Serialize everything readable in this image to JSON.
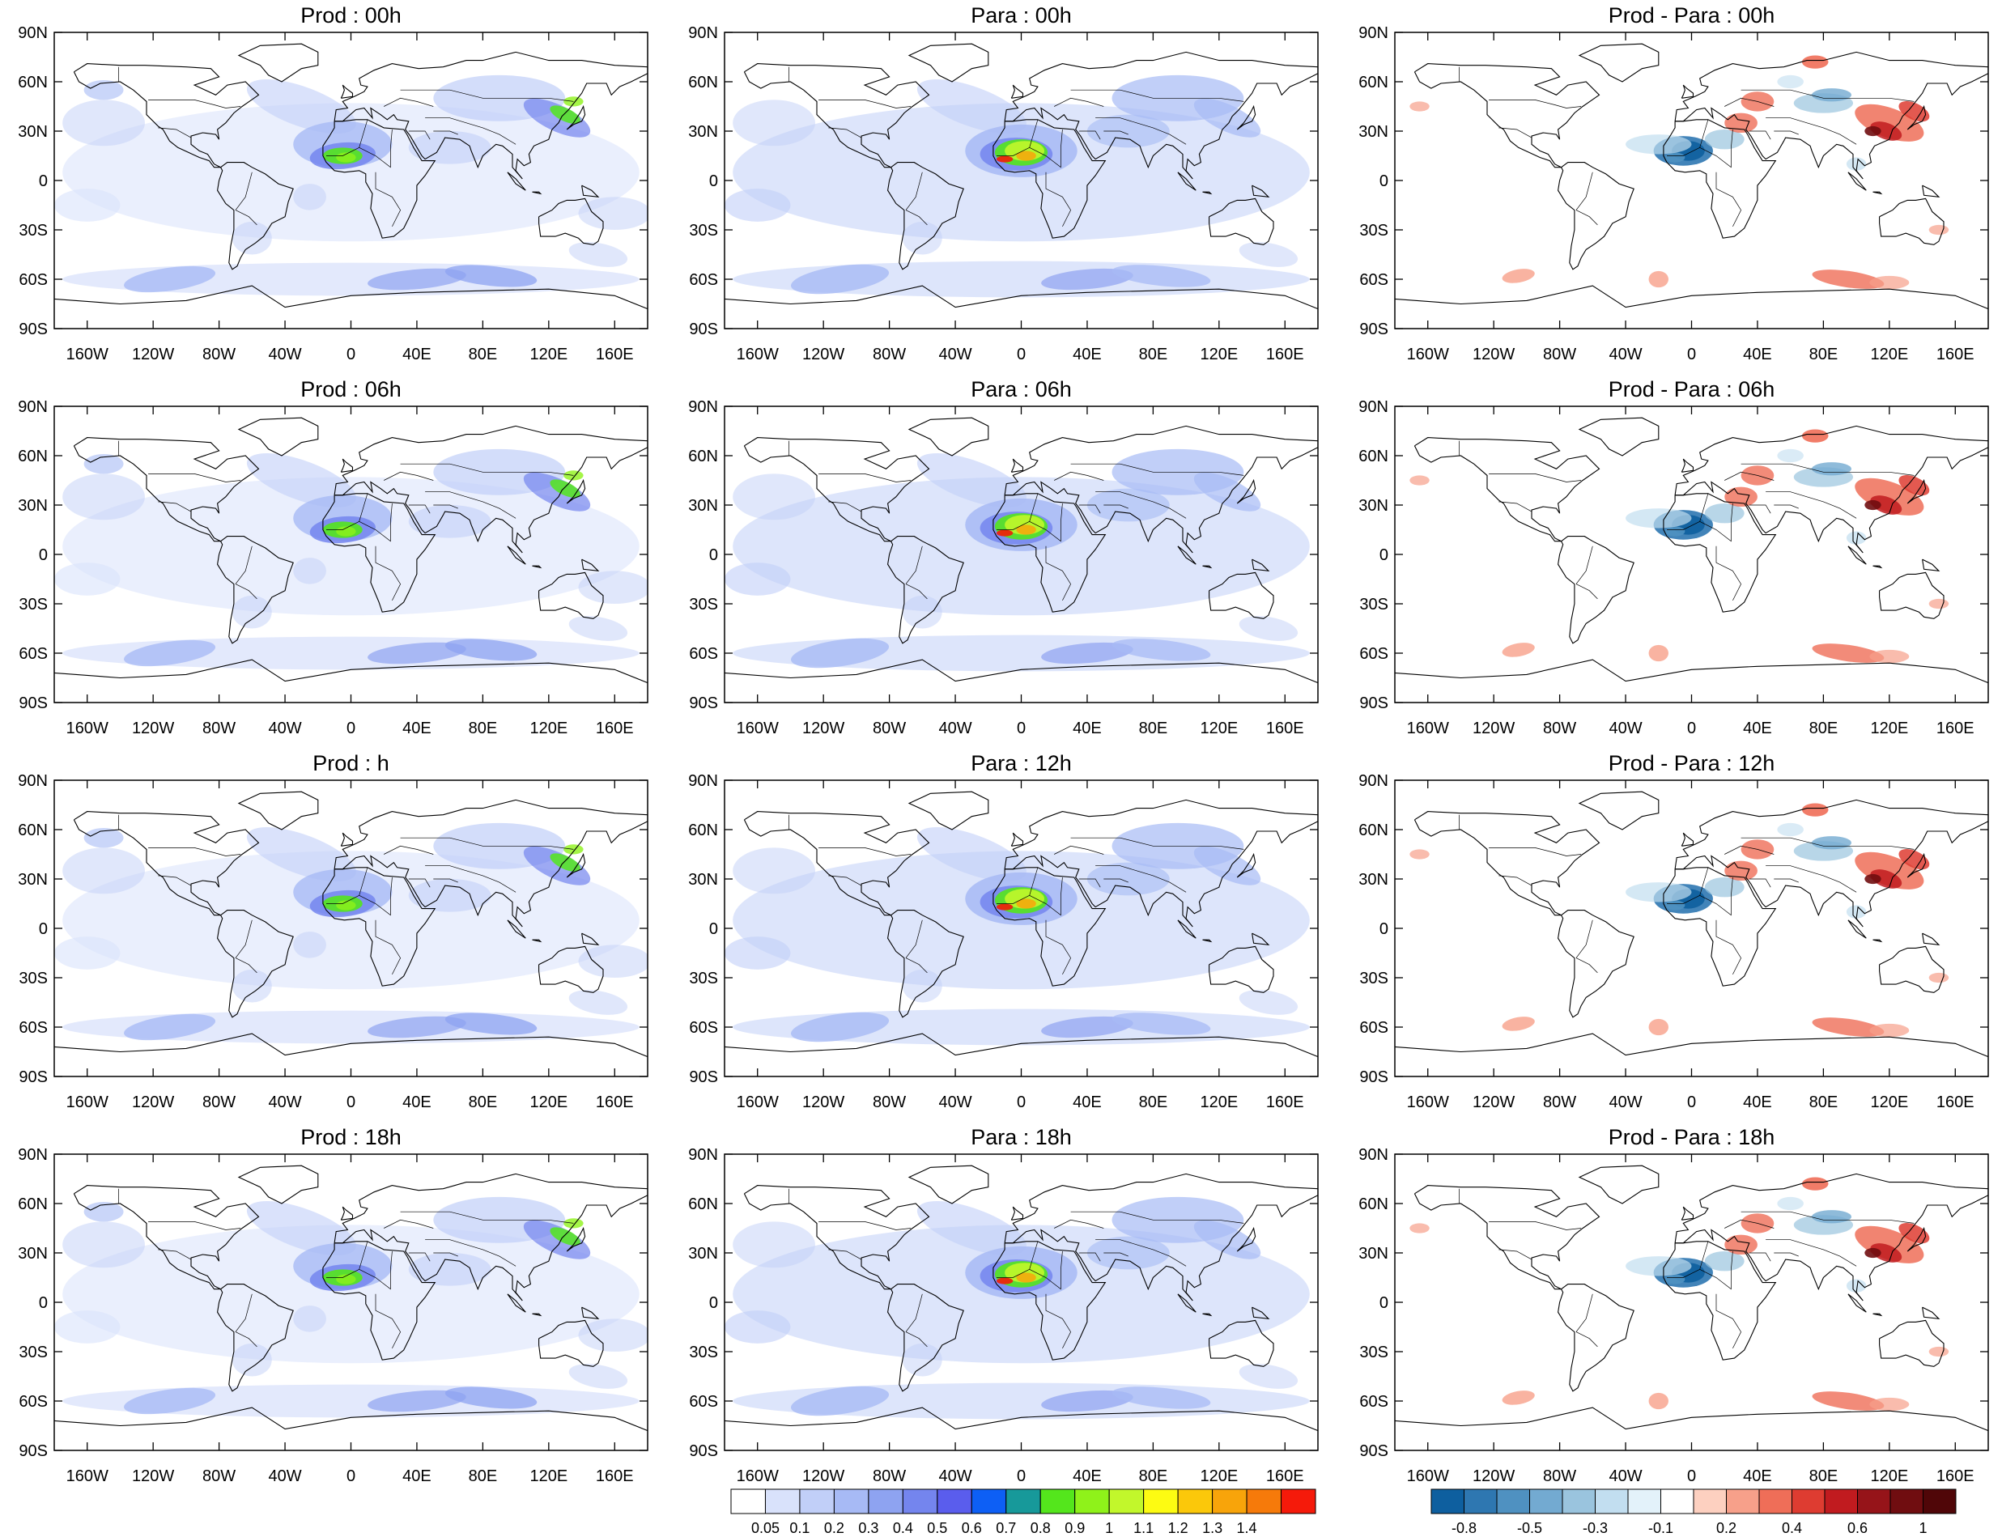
{
  "figure": {
    "panels": [
      {
        "title": "Prod : 00h",
        "kind": "field"
      },
      {
        "title": "Para : 00h",
        "kind": "field_para"
      },
      {
        "title": "Prod - Para : 00h",
        "kind": "diff"
      },
      {
        "title": "Prod : 06h",
        "kind": "field"
      },
      {
        "title": "Para : 06h",
        "kind": "field_para"
      },
      {
        "title": "Prod - Para : 06h",
        "kind": "diff"
      },
      {
        "title": "Prod : h",
        "kind": "field"
      },
      {
        "title": "Para : 12h",
        "kind": "field_para"
      },
      {
        "title": "Prod - Para : 12h",
        "kind": "diff"
      },
      {
        "title": "Prod : 18h",
        "kind": "field"
      },
      {
        "title": "Para : 18h",
        "kind": "field_para"
      },
      {
        "title": "Prod - Para : 18h",
        "kind": "diff"
      }
    ],
    "lat_ticks": [
      "90N",
      "60N",
      "30N",
      "0",
      "30S",
      "60S",
      "90S"
    ],
    "lon_ticks": [
      "160W",
      "120W",
      "80W",
      "40W",
      "0",
      "40E",
      "80E",
      "120E",
      "160E"
    ],
    "field_colorbar": {
      "labels": [
        "0.05",
        "0.1",
        "0.2",
        "0.3",
        "0.4",
        "0.5",
        "0.6",
        "0.7",
        "0.8",
        "0.9",
        "1",
        "1.1",
        "1.2",
        "1.3",
        "1.4"
      ],
      "colors": [
        "#ffffff",
        "#d9e2fb",
        "#c1cff8",
        "#a7baf5",
        "#8ea3f1",
        "#7485ee",
        "#5a5ded",
        "#0d5ff5",
        "#17999a",
        "#54e61c",
        "#8ff21a",
        "#c2f72b",
        "#fdfb12",
        "#fbc80a",
        "#f8a40a",
        "#f67a0a",
        "#f51a0a"
      ]
    },
    "diff_colorbar": {
      "labels": [
        "-0.8",
        "-0.5",
        "-0.3",
        "-0.1",
        "0.2",
        "0.4",
        "0.6",
        "1"
      ],
      "colors": [
        "#0e5f9f",
        "#2e77b1",
        "#4f91c1",
        "#73aad1",
        "#9ac4de",
        "#c2def0",
        "#e3f2fa",
        "#ffffff",
        "#fdd0c0",
        "#f7a08a",
        "#ef6e58",
        "#de3c31",
        "#c11b1f",
        "#961419",
        "#700d10",
        "#500608"
      ]
    }
  }
}
